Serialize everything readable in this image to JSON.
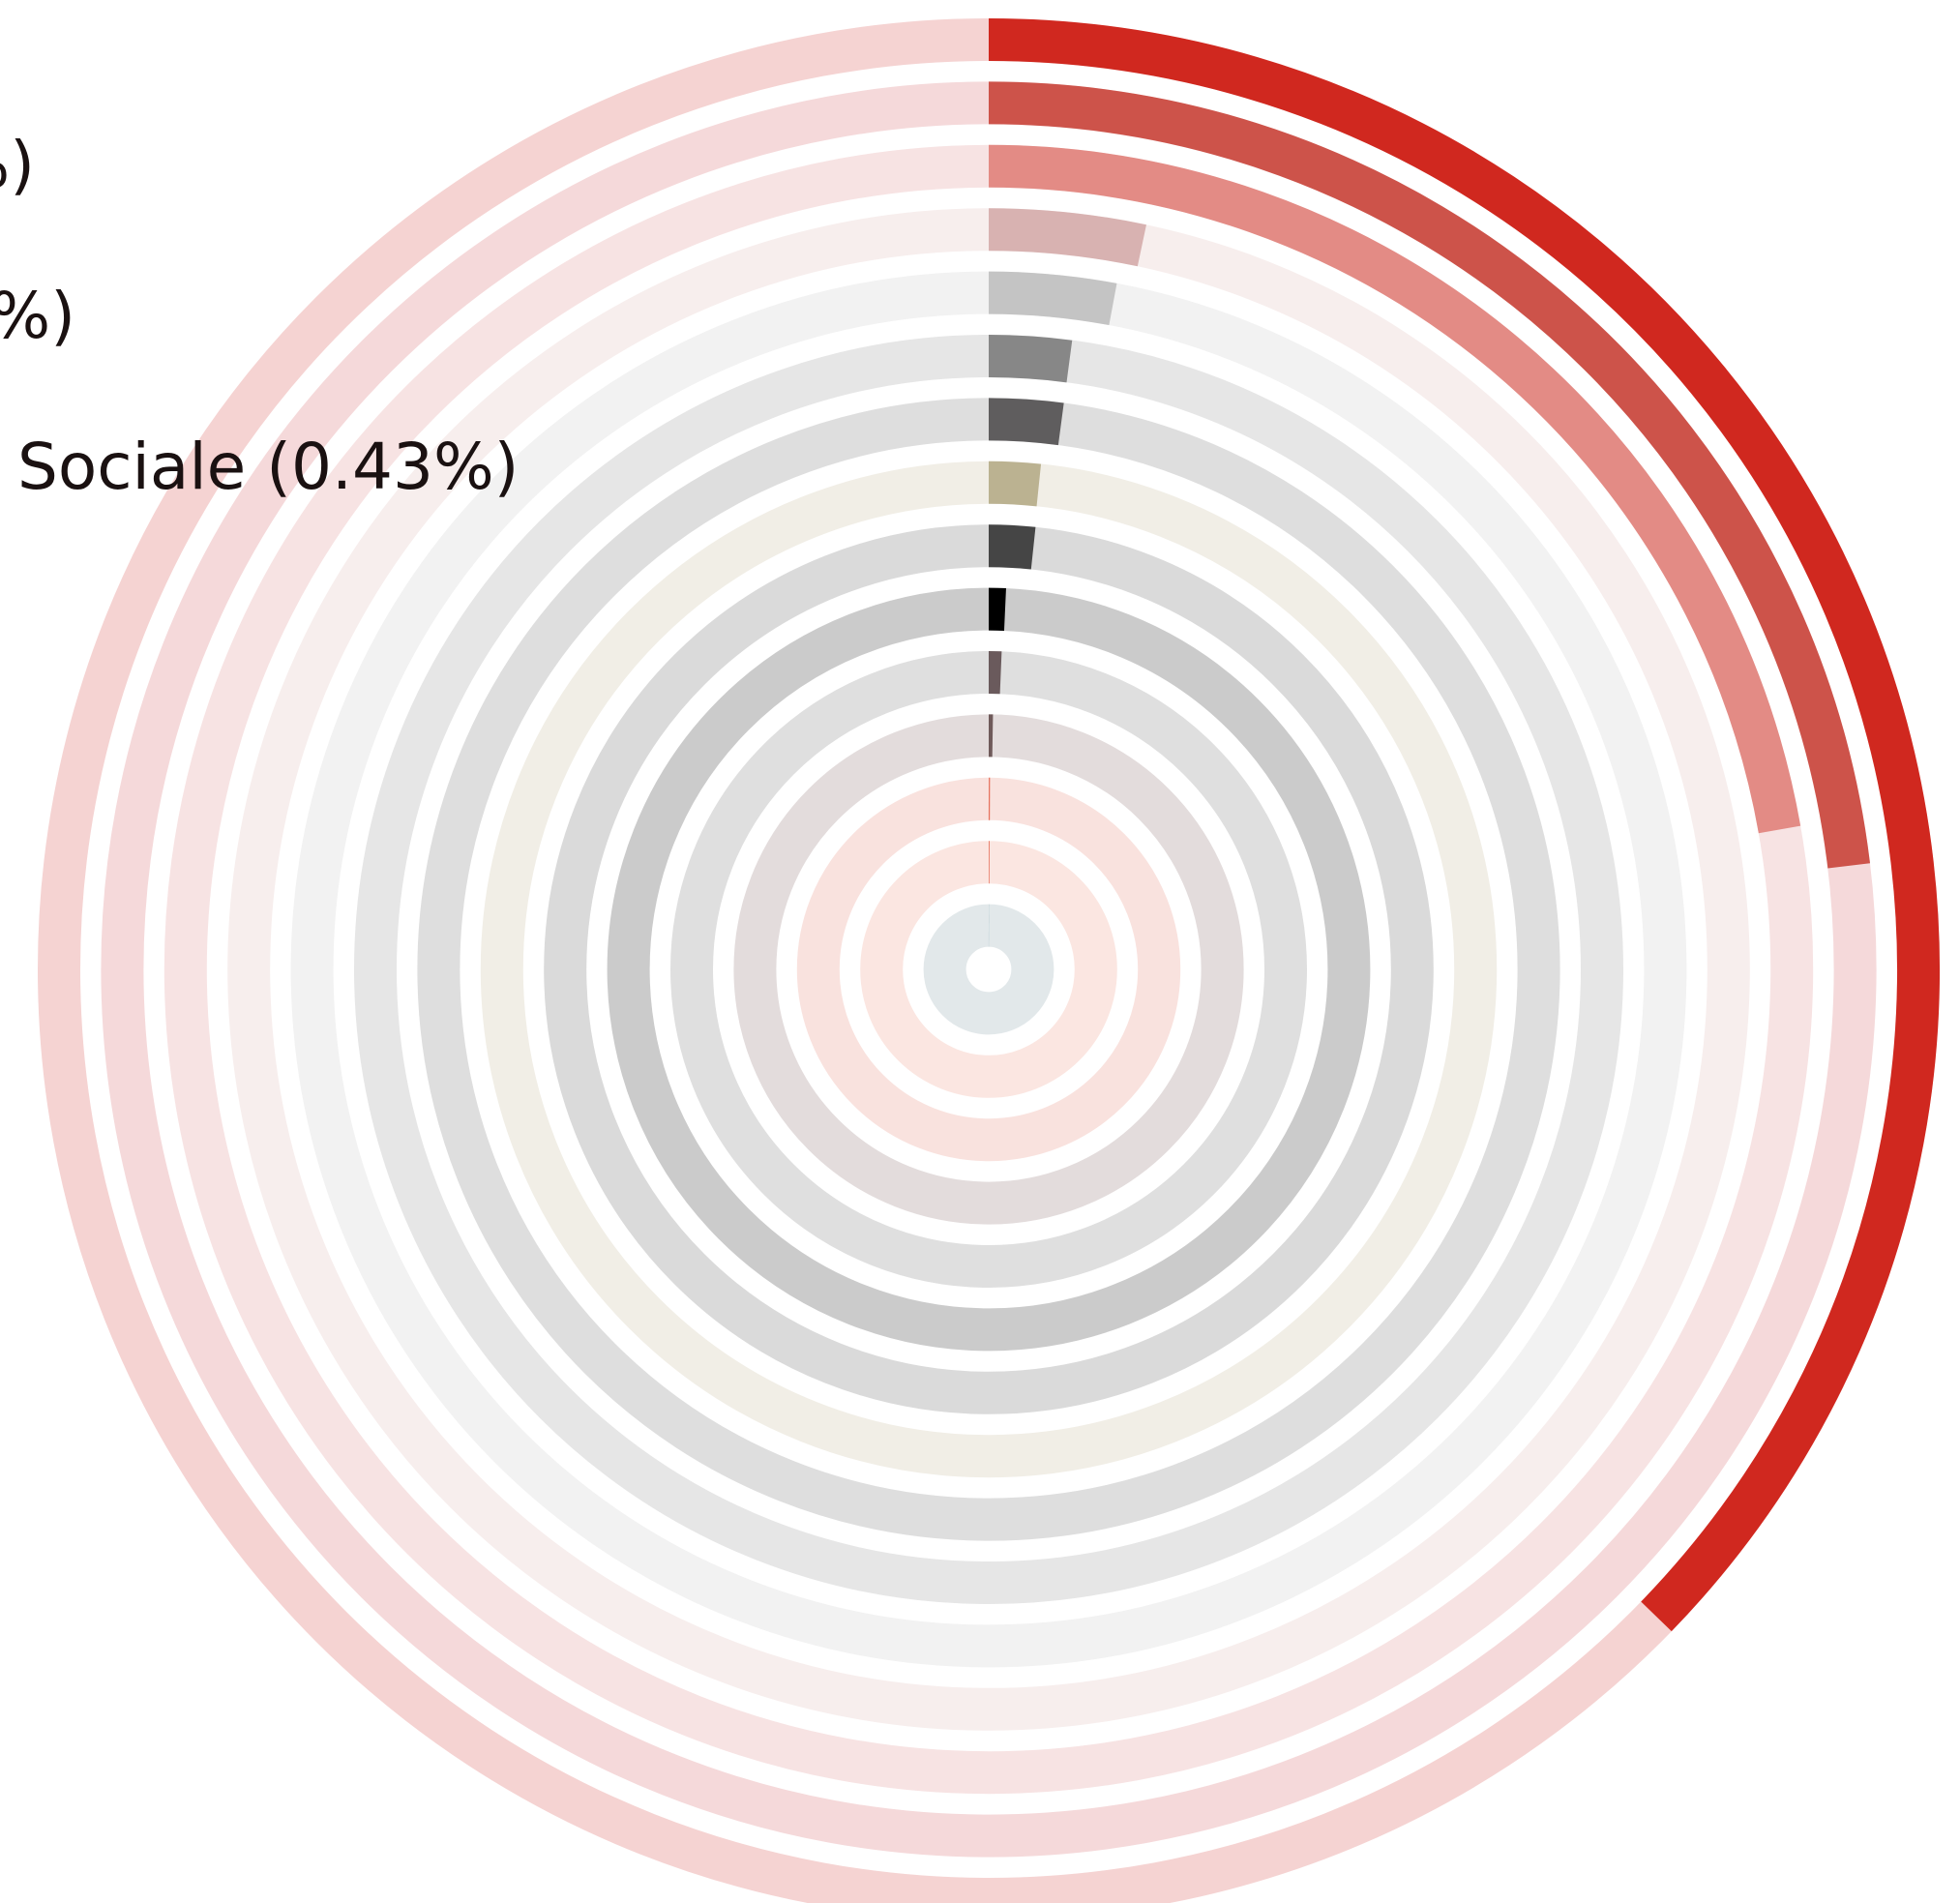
{
  "chart_data": {
    "type": "radial_bar",
    "values": [
      9.76,
      6.05,
      5.82,
      0.87,
      0.77,
      0.55,
      0.55,
      0.43,
      0.44,
      0.19,
      0.17,
      0.07,
      0.03,
      0.03,
      0.01
    ],
    "value_labels": [
      null,
      null,
      "%)",
      null,
      "%)",
      null,
      null,
      "Sociale (0.43%)",
      null,
      null,
      null,
      null,
      null,
      null,
      null
    ],
    "xlim": [
      0,
      26.2
    ],
    "colors": [
      "#d0281f",
      "#cd534a",
      "#e38b85",
      "#d8b2b1",
      "#c4c4c4",
      "#878787",
      "#5f5d5e",
      "#bbb291",
      "#454545",
      "#000000",
      "#6a5a5c",
      "#6f5a5a",
      "#e6735e",
      "#e6735e",
      "#5e8fa0"
    ],
    "track_colors": [
      "#f5d3d2",
      "#f5d9da",
      "#f7e3e3",
      "#f7eeed",
      "#f2f2f2",
      "#e6e6e6",
      "#dedede",
      "#f1eee6",
      "#dadada",
      "#cbcbcb",
      "#dfdfdf",
      "#e3dcdc",
      "#f9e2de",
      "#fbe6e1",
      "#e2e8ea"
    ]
  }
}
